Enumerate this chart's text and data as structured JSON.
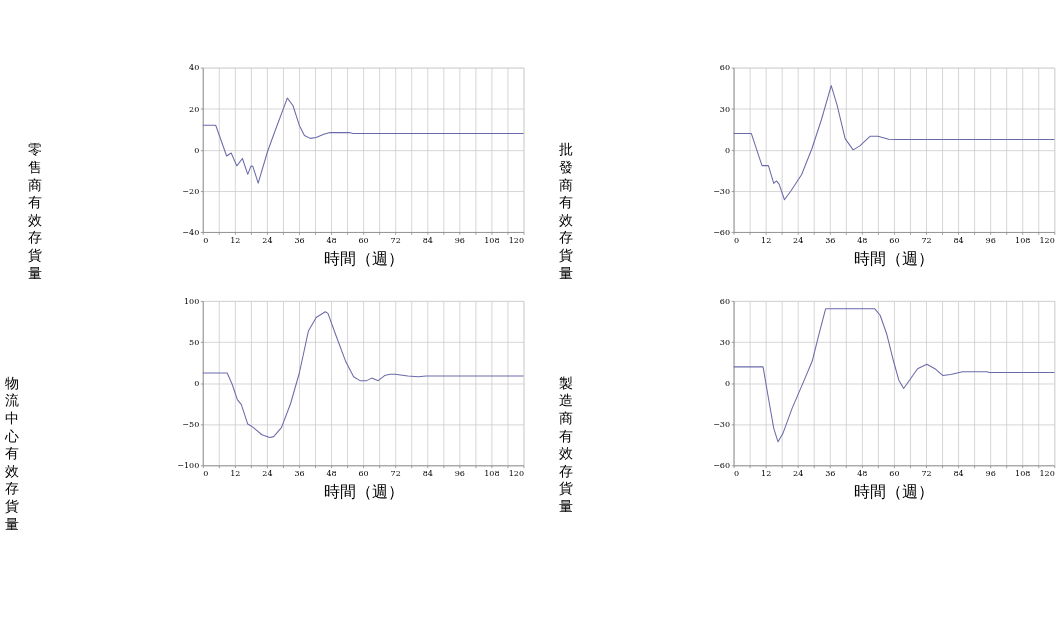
{
  "chart_data": [
    {
      "type": "line",
      "ylabel": "零售商有效存貨量",
      "xlabel": "時間（週）",
      "color": "#6a6aaa",
      "grid": true,
      "xlim": [
        0,
        120
      ],
      "ylim": [
        -40,
        40
      ],
      "yticks": [
        -40,
        -20,
        0,
        20,
        40
      ],
      "xticks": [
        0,
        {
          "value": 6,
          "label": null
        },
        12,
        {
          "value": 18,
          "label": null
        },
        24,
        {
          "value": 30,
          "label": null
        },
        36,
        {
          "value": 42,
          "label": null
        },
        48,
        {
          "value": 54,
          "label": null
        },
        60,
        {
          "value": 66,
          "label": null
        },
        72,
        {
          "value": 78,
          "label": null
        },
        84,
        {
          "value": 90,
          "label": null
        },
        96,
        {
          "value": 102,
          "label": null
        },
        108,
        {
          "value": 114,
          "label": null
        },
        120
      ],
      "x": [
        0,
        4.8,
        8.9,
        10.6,
        12.7,
        14.8,
        16.8,
        18,
        18.7,
        20.7,
        24.2,
        27,
        31.6,
        33.7,
        36.1,
        38,
        40.2,
        42.4,
        45.2,
        47.6,
        54.8,
        56.2,
        120
      ],
      "values": [
        12,
        12,
        -3,
        -1.5,
        -7.8,
        -4.2,
        -11.9,
        -7.9,
        -8,
        -16.2,
        -0.8,
        9.2,
        25.2,
        21.6,
        11.9,
        7,
        5.6,
        6,
        7.6,
        8.4,
        8.4,
        8,
        8
      ]
    },
    {
      "type": "line",
      "ylabel": "批發商有效存貨量",
      "xlabel": "時間（週）",
      "color": "#6a6aaa",
      "grid": true,
      "xlim": [
        0,
        120
      ],
      "ylim": [
        -60,
        60
      ],
      "yticks": [
        -60,
        -30,
        0,
        30,
        60
      ],
      "xticks": [
        0,
        {
          "value": 6,
          "label": null
        },
        12,
        {
          "value": 18,
          "label": null
        },
        24,
        {
          "value": 30,
          "label": null
        },
        36,
        {
          "value": 42,
          "label": null
        },
        48,
        {
          "value": 54,
          "label": null
        },
        60,
        {
          "value": 66,
          "label": null
        },
        72,
        {
          "value": 78,
          "label": null
        },
        84,
        {
          "value": 90,
          "label": null
        },
        96,
        {
          "value": 102,
          "label": null
        },
        108,
        {
          "value": 114,
          "label": null
        },
        120
      ],
      "x": [
        0,
        6.6,
        10.6,
        13,
        15,
        16,
        17,
        19,
        21.4,
        25.4,
        29.3,
        32.8,
        36.5,
        38.7,
        41.7,
        44.7,
        47.1,
        51.1,
        54,
        58,
        60.5,
        120
      ],
      "values": [
        12,
        12,
        -11.5,
        -11.5,
        -24.5,
        -22.7,
        -25,
        -36.4,
        -30,
        -18.2,
        1,
        21.8,
        46.9,
        32.7,
        8.2,
        0,
        2.7,
        10,
        10,
        7.8,
        7.6,
        7.6
      ]
    },
    {
      "type": "line",
      "ylabel": "物流中心有效存貨量",
      "xlabel": "時間（週）",
      "color": "#6a6aaa",
      "grid": true,
      "xlim": [
        0,
        120
      ],
      "ylim": [
        -100,
        100
      ],
      "yticks": [
        -100,
        -50,
        0,
        50,
        100
      ],
      "xticks": [
        0,
        {
          "value": 6,
          "label": null
        },
        12,
        {
          "value": 18,
          "label": null
        },
        24,
        {
          "value": 30,
          "label": null
        },
        36,
        {
          "value": 42,
          "label": null
        },
        48,
        {
          "value": 54,
          "label": null
        },
        60,
        {
          "value": 66,
          "label": null
        },
        72,
        {
          "value": 78,
          "label": null
        },
        84,
        {
          "value": 90,
          "label": null
        },
        96,
        {
          "value": 102,
          "label": null
        },
        108,
        {
          "value": 114,
          "label": null
        },
        120
      ],
      "x": [
        0,
        9.1,
        11,
        12.9,
        14.4,
        16.8,
        18.7,
        22.1,
        25,
        26.5,
        29.4,
        32.8,
        36.1,
        39.5,
        42.4,
        45.8,
        46.8,
        49.7,
        53.5,
        56.4,
        58.8,
        61.3,
        63.2,
        65.6,
        68,
        70,
        71.9,
        76.7,
        80.6,
        83.5,
        120
      ],
      "values": [
        12.4,
        12.4,
        -1.6,
        -20,
        -26,
        -49.7,
        -53.4,
        -62.7,
        -66,
        -65,
        -54,
        -25,
        12.4,
        63.6,
        80,
        87,
        85,
        59,
        26,
        7.8,
        3.1,
        3.1,
        6.2,
        3.1,
        9.3,
        10.9,
        10.9,
        8.7,
        7.8,
        8.7,
        8.7
      ]
    },
    {
      "type": "line",
      "ylabel": "製造商有效存貨量",
      "xlabel": "時間（週）",
      "color": "#6a6aaa",
      "grid": true,
      "xlim": [
        0,
        120
      ],
      "ylim": [
        -60,
        60
      ],
      "yticks": [
        -60,
        -30,
        0,
        30,
        60
      ],
      "xticks": [
        0,
        {
          "value": 6,
          "label": null
        },
        12,
        {
          "value": 18,
          "label": null
        },
        24,
        {
          "value": 30,
          "label": null
        },
        36,
        {
          "value": 42,
          "label": null
        },
        48,
        {
          "value": 54,
          "label": null
        },
        60,
        {
          "value": 66,
          "label": null
        },
        72,
        {
          "value": 78,
          "label": null
        },
        84,
        {
          "value": 90,
          "label": null
        },
        96,
        {
          "value": 102,
          "label": null
        },
        108,
        {
          "value": 114,
          "label": null
        },
        120
      ],
      "x": [
        0,
        11,
        13,
        15,
        16.6,
        18.4,
        21.9,
        26,
        29.4,
        31.9,
        34.4,
        52.8,
        54.8,
        57.3,
        59.8,
        61.8,
        63.6,
        65.8,
        68.8,
        72.3,
        75.3,
        78.3,
        81.2,
        85.7,
        94.7,
        95.7,
        120
      ],
      "values": [
        11.9,
        11.9,
        -10.8,
        -33,
        -42.8,
        -36.8,
        -18.2,
        0.4,
        16.2,
        35.7,
        54.3,
        54.3,
        49.6,
        35.7,
        16.2,
        2.2,
        -3.9,
        2.2,
        10.6,
        13.8,
        10.6,
        5.6,
        6.3,
        8.4,
        8.4,
        7.8,
        7.8
      ]
    }
  ]
}
